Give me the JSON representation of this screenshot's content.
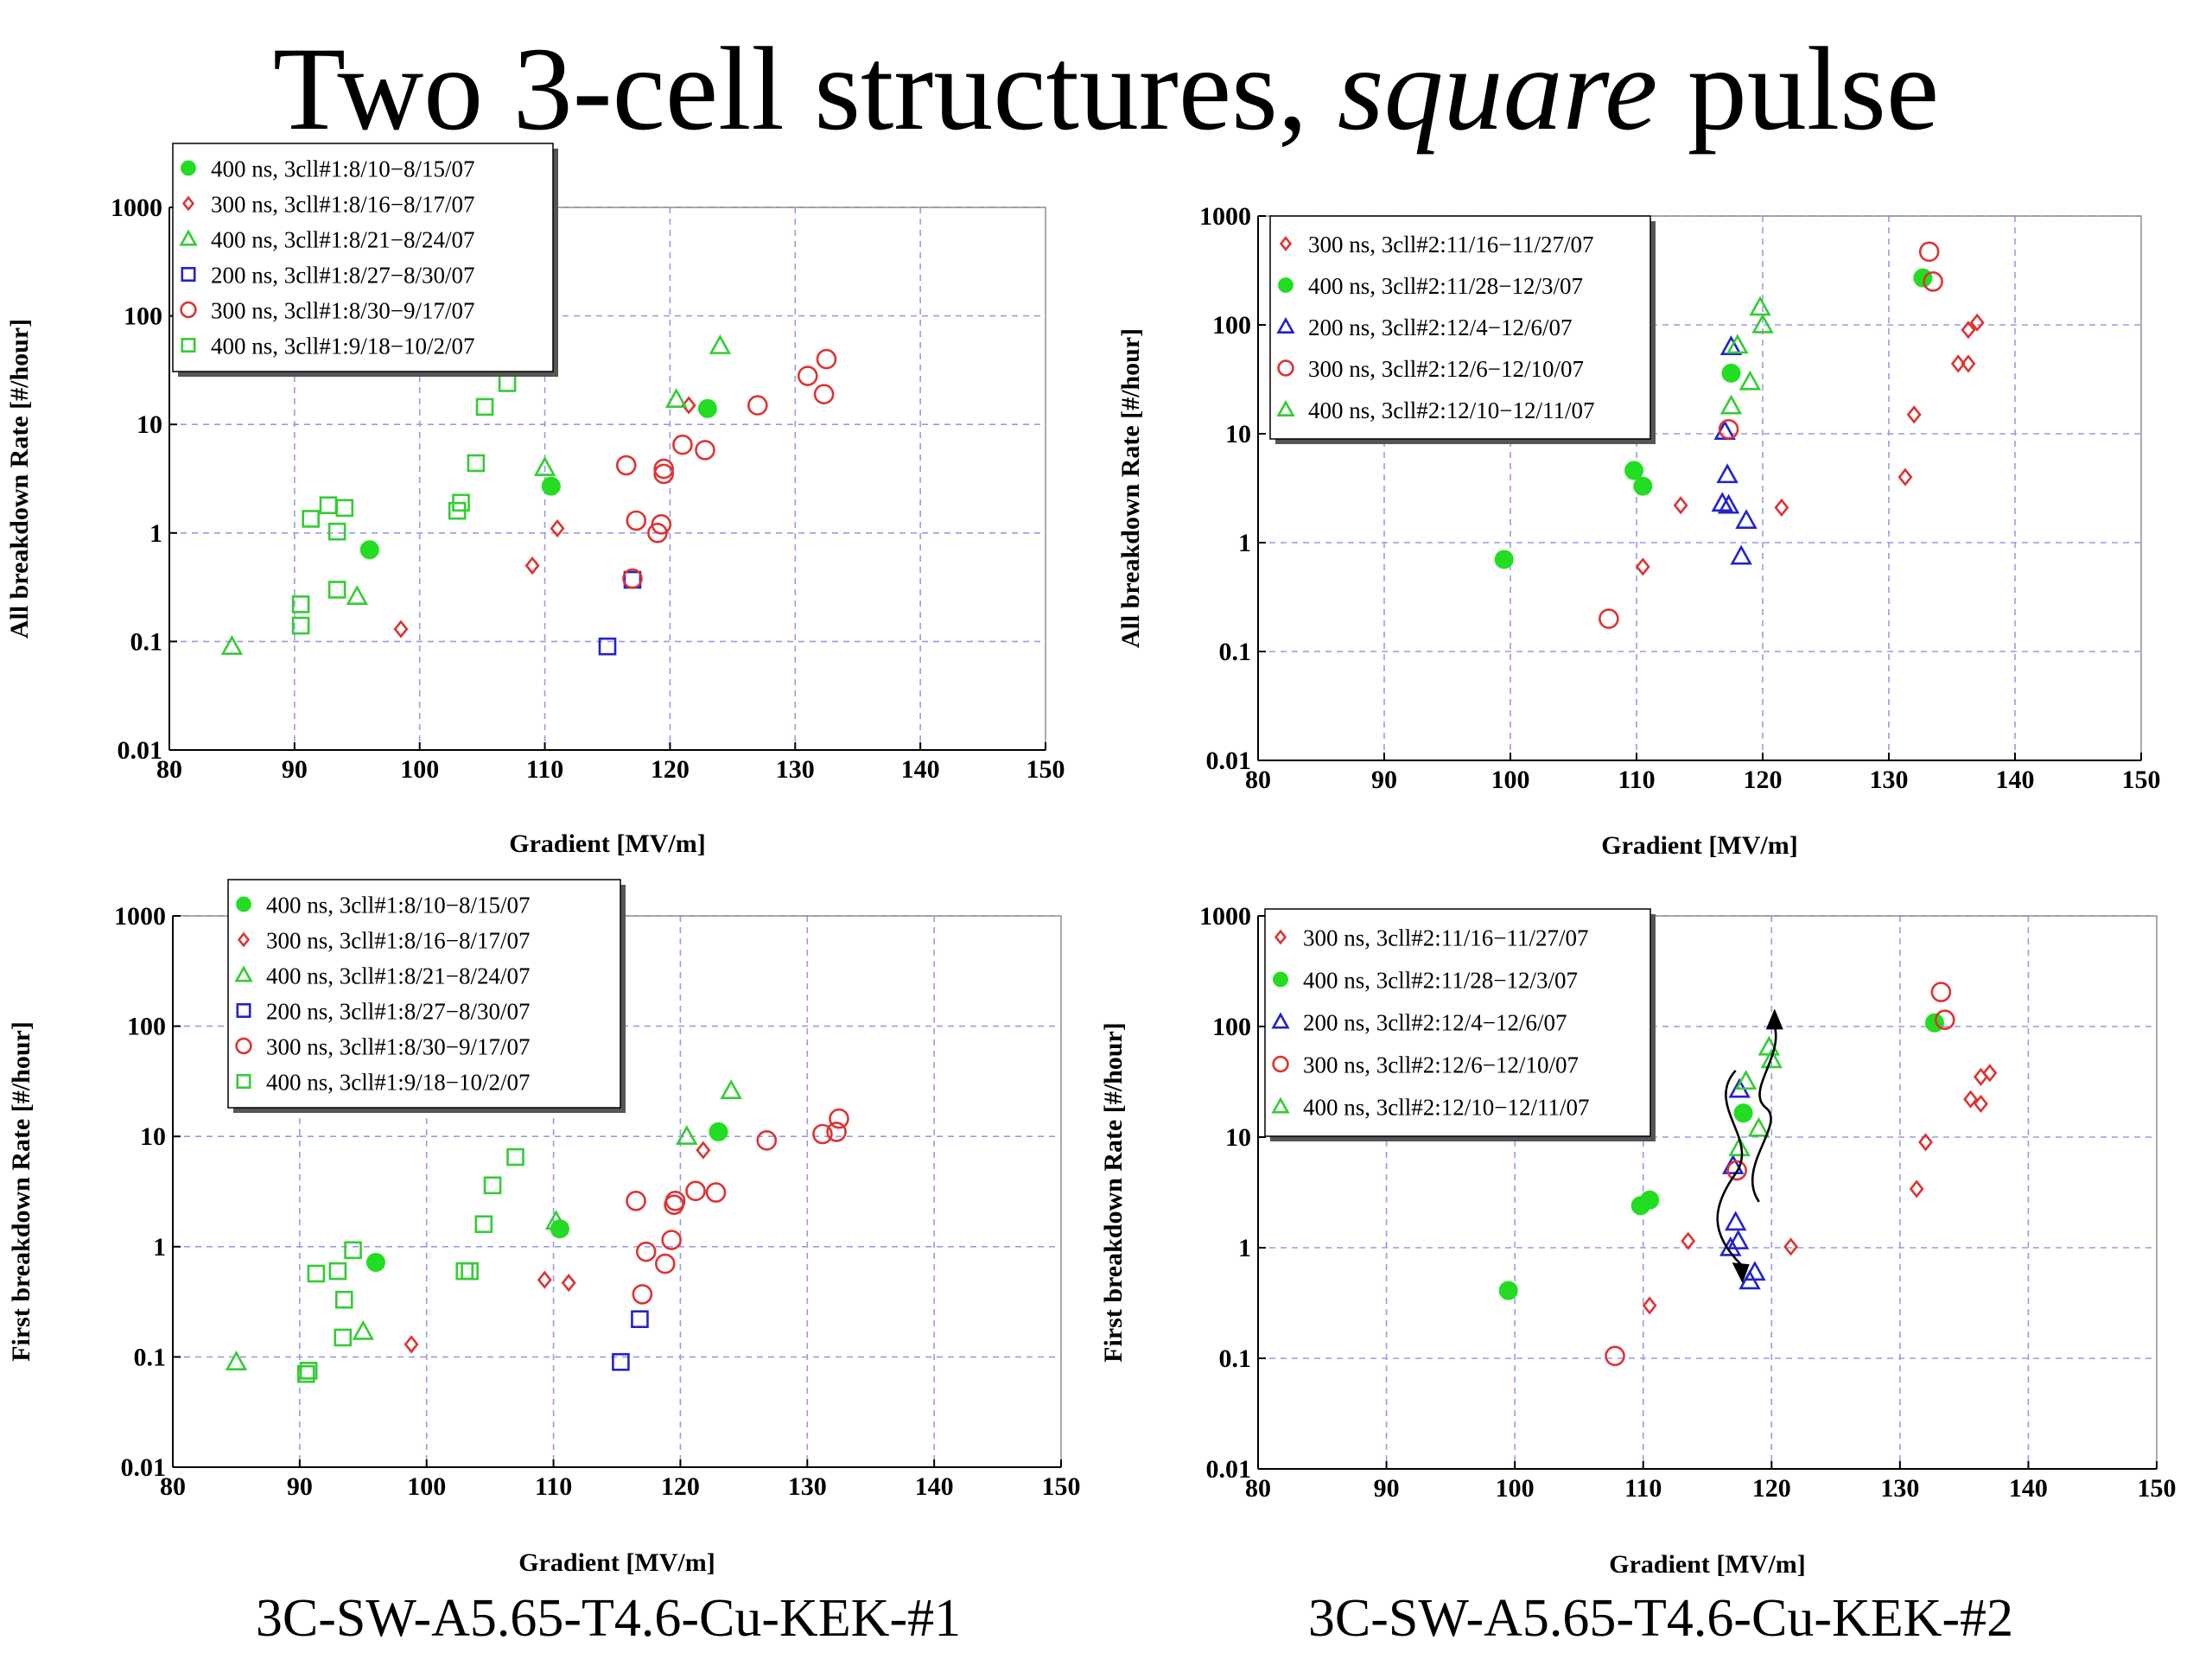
{
  "slide": {
    "title_pre": "Two 3-cell structures, ",
    "title_italic": "square",
    "title_post": " pulse",
    "captions": [
      "3C-SW-A5.65-T4.6-Cu-KEK-#1",
      "3C-SW-A5.65-T4.6-Cu-KEK-#2"
    ]
  },
  "chart_data": [
    {
      "type": "scatter",
      "xlabel": "Gradient [MV/m]",
      "ylabel": "All breakdown Rate [#/hour]",
      "xlim": [
        80,
        150
      ],
      "ylim": [
        0.01,
        1000
      ],
      "y_scale": "log",
      "x_ticks": [
        "80",
        "90",
        "100",
        "110",
        "120",
        "130",
        "140",
        "150"
      ],
      "y_ticks": [
        "0.01",
        "0.1",
        "1",
        "10",
        "100",
        "1000"
      ],
      "grid": true,
      "legend_position": "top-left",
      "series": [
        {
          "name": "400 ns, 3cll#1:8/10−8/15/07",
          "marker": "filled-circle",
          "color": "#22dd22",
          "points": [
            [
              96,
              0.7
            ],
            [
              110.5,
              2.7
            ],
            [
              123,
              14
            ]
          ]
        },
        {
          "name": "300 ns, 3cll#1:8/16−8/17/07",
          "marker": "diamond",
          "color": "#dd3333",
          "points": [
            [
              98.5,
              0.13
            ],
            [
              109,
              0.5
            ],
            [
              111,
              1.1
            ],
            [
              121.5,
              15
            ]
          ]
        },
        {
          "name": "400 ns, 3cll#1:8/21−8/24/07",
          "marker": "triangle",
          "color": "#33cc33",
          "points": [
            [
              85,
              0.09
            ],
            [
              95,
              0.26
            ],
            [
              110,
              4
            ],
            [
              120.5,
              17
            ],
            [
              124,
              53
            ]
          ]
        },
        {
          "name": "200 ns, 3cll#1:8/27−8/30/07",
          "marker": "square",
          "color": "#2222cc",
          "points": [
            [
              115,
              0.09
            ],
            [
              117,
              0.37
            ]
          ]
        },
        {
          "name": "300 ns, 3cll#1:8/30−9/17/07",
          "marker": "circle",
          "color": "#dd3333",
          "points": [
            [
              116.5,
              4.2
            ],
            [
              117,
              0.38
            ],
            [
              117.3,
              1.3
            ],
            [
              119,
              1.0
            ],
            [
              119.3,
              1.2
            ],
            [
              119.5,
              3.5
            ],
            [
              119.5,
              3.9
            ],
            [
              121,
              6.5
            ],
            [
              122.8,
              5.8
            ],
            [
              127,
              15
            ],
            [
              131,
              28
            ],
            [
              132.3,
              19
            ],
            [
              132.5,
              40
            ]
          ]
        },
        {
          "name": "400 ns, 3cll#1:9/18−10/2/07",
          "marker": "square",
          "color": "#33cc33",
          "points": [
            [
              90.5,
              0.14
            ],
            [
              90.5,
              0.22
            ],
            [
              91.3,
              1.35
            ],
            [
              92.7,
              1.8
            ],
            [
              93.4,
              1.03
            ],
            [
              93.4,
              0.3
            ],
            [
              94,
              1.7
            ],
            [
              103,
              1.6
            ],
            [
              103.3,
              1.9
            ],
            [
              104.5,
              4.4
            ],
            [
              105.2,
              14.5
            ],
            [
              107,
              24
            ]
          ]
        }
      ]
    },
    {
      "type": "scatter",
      "xlabel": "Gradient [MV/m]",
      "ylabel": "All breakdown Rate [#/hour]",
      "xlim": [
        80,
        150
      ],
      "ylim": [
        0.01,
        1000
      ],
      "y_scale": "log",
      "x_ticks": [
        "80",
        "90",
        "100",
        "110",
        "120",
        "130",
        "140",
        "150"
      ],
      "y_ticks": [
        "0.01",
        "0.1",
        "1",
        "10",
        "100",
        "1000"
      ],
      "grid": true,
      "legend_position": "top-left",
      "series": [
        {
          "name": "300 ns, 3cll#2:11/16−11/27/07",
          "marker": "diamond",
          "color": "#dd3333",
          "points": [
            [
              110.5,
              0.6
            ],
            [
              113.5,
              2.2
            ],
            [
              121.5,
              2.1
            ],
            [
              131.3,
              4
            ],
            [
              132,
              15
            ],
            [
              135.5,
              44
            ],
            [
              136.3,
              44
            ],
            [
              136.3,
              90
            ],
            [
              137,
              105
            ]
          ]
        },
        {
          "name": "400 ns, 3cll#2:11/28−12/3/07",
          "marker": "filled-circle",
          "color": "#22dd22",
          "points": [
            [
              99.5,
              0.7
            ],
            [
              109.8,
              4.6
            ],
            [
              110.5,
              3.3
            ],
            [
              117.5,
              36
            ],
            [
              132.7,
              270
            ]
          ]
        },
        {
          "name": "200 ns, 3cll#2:12/4−12/6/07",
          "marker": "triangle",
          "color": "#2222cc",
          "points": [
            [
              116.8,
              2.3
            ],
            [
              117,
              10.5
            ],
            [
              117.2,
              4.2
            ],
            [
              117.3,
              2.2
            ],
            [
              117.5,
              63
            ],
            [
              118.3,
              0.75
            ],
            [
              118.7,
              1.6
            ]
          ]
        },
        {
          "name": "300 ns, 3cll#2:12/6−12/10/07",
          "marker": "circle",
          "color": "#dd3333",
          "points": [
            [
              107.8,
              0.2
            ],
            [
              117.3,
              11
            ],
            [
              133.2,
              470
            ],
            [
              133.5,
              250
            ]
          ]
        },
        {
          "name": "400 ns, 3cll#2:12/10−12/11/07",
          "marker": "triangle",
          "color": "#33cc33",
          "points": [
            [
              117.5,
              18
            ],
            [
              118,
              65
            ],
            [
              119,
              30
            ],
            [
              119.8,
              145
            ],
            [
              120,
              100
            ]
          ]
        }
      ]
    },
    {
      "type": "scatter",
      "xlabel": "Gradient [MV/m]",
      "ylabel": "First breakdown Rate [#/hour]",
      "xlim": [
        80,
        150
      ],
      "ylim": [
        0.01,
        1000
      ],
      "y_scale": "log",
      "x_ticks": [
        "80",
        "90",
        "100",
        "110",
        "120",
        "130",
        "140",
        "150"
      ],
      "y_ticks": [
        "0.01",
        "0.1",
        "1",
        "10",
        "100",
        "1000"
      ],
      "grid": true,
      "legend_position": "top-left",
      "series": [
        {
          "name": "400 ns, 3cll#1:8/10−8/15/07",
          "marker": "filled-circle",
          "color": "#22dd22",
          "points": [
            [
              96,
              0.72
            ],
            [
              110.5,
              1.45
            ],
            [
              123,
              11
            ]
          ]
        },
        {
          "name": "300 ns, 3cll#1:8/16−8/17/07",
          "marker": "diamond",
          "color": "#dd3333",
          "points": [
            [
              98.8,
              0.13
            ],
            [
              109.3,
              0.5
            ],
            [
              111.2,
              0.47
            ],
            [
              121.8,
              7.5
            ]
          ]
        },
        {
          "name": "400 ns, 3cll#1:8/21−8/24/07",
          "marker": "triangle",
          "color": "#33cc33",
          "points": [
            [
              85,
              0.09
            ],
            [
              95,
              0.17
            ],
            [
              110.2,
              1.7
            ],
            [
              120.5,
              10
            ],
            [
              124,
              26
            ]
          ]
        },
        {
          "name": "200 ns, 3cll#1:8/27−8/30/07",
          "marker": "square",
          "color": "#2222cc",
          "points": [
            [
              115.3,
              0.09
            ],
            [
              116.8,
              0.22
            ]
          ]
        },
        {
          "name": "300 ns, 3cll#1:8/30−9/17/07",
          "marker": "circle",
          "color": "#dd3333",
          "points": [
            [
              116.5,
              2.6
            ],
            [
              117,
              0.37
            ],
            [
              117.3,
              0.9
            ],
            [
              118.8,
              0.7
            ],
            [
              119.3,
              1.15
            ],
            [
              119.5,
              2.4
            ],
            [
              119.6,
              2.6
            ],
            [
              121.2,
              3.2
            ],
            [
              122.8,
              3.1
            ],
            [
              126.8,
              9.2
            ],
            [
              131.2,
              10.5
            ],
            [
              132.3,
              11
            ],
            [
              132.5,
              14.5
            ]
          ]
        },
        {
          "name": "400 ns, 3cll#1:9/18−10/2/07",
          "marker": "square",
          "color": "#33cc33",
          "points": [
            [
              90.5,
              0.07
            ],
            [
              90.7,
              0.075
            ],
            [
              91.3,
              0.57
            ],
            [
              93,
              0.6
            ],
            [
              93.4,
              0.15
            ],
            [
              93.5,
              0.33
            ],
            [
              94.2,
              0.93
            ],
            [
              103,
              0.6
            ],
            [
              103.4,
              0.6
            ],
            [
              104.5,
              1.6
            ],
            [
              105.2,
              3.6
            ],
            [
              107,
              6.5
            ]
          ]
        }
      ]
    },
    {
      "type": "scatter",
      "xlabel": "Gradient [MV/m]",
      "ylabel": "First breakdown Rate [#/hour]",
      "xlim": [
        80,
        150
      ],
      "ylim": [
        0.01,
        1000
      ],
      "y_scale": "log",
      "x_ticks": [
        "80",
        "90",
        "100",
        "110",
        "120",
        "130",
        "140",
        "150"
      ],
      "y_ticks": [
        "0.01",
        "0.1",
        "1",
        "10",
        "100",
        "1000"
      ],
      "grid": true,
      "legend_position": "top-left",
      "annotations": [
        "wavy arrow pointing down",
        "wavy arrow pointing up"
      ],
      "series": [
        {
          "name": "300 ns, 3cll#2:11/16−11/27/07",
          "marker": "diamond",
          "color": "#dd3333",
          "points": [
            [
              110.5,
              0.3
            ],
            [
              113.5,
              1.15
            ],
            [
              121.5,
              1.02
            ],
            [
              131.3,
              3.4
            ],
            [
              132,
              9
            ],
            [
              135.5,
              22
            ],
            [
              136.3,
              20
            ],
            [
              136.3,
              35
            ],
            [
              137,
              38
            ]
          ]
        },
        {
          "name": "400 ns, 3cll#2:11/28−12/3/07",
          "marker": "filled-circle",
          "color": "#22dd22",
          "points": [
            [
              99.5,
              0.41
            ],
            [
              109.8,
              2.4
            ],
            [
              110.5,
              2.7
            ],
            [
              117.8,
              16.5
            ],
            [
              132.7,
              108
            ]
          ]
        },
        {
          "name": "200 ns, 3cll#2:12/4−12/6/07",
          "marker": "triangle",
          "color": "#2222cc",
          "points": [
            [
              116.8,
              1.0
            ],
            [
              117,
              5.5
            ],
            [
              117.2,
              1.7
            ],
            [
              117.4,
              1.15
            ],
            [
              117.5,
              27
            ],
            [
              118.3,
              0.5
            ],
            [
              118.7,
              0.6
            ]
          ]
        },
        {
          "name": "300 ns, 3cll#2:12/6−12/10/07",
          "marker": "circle",
          "color": "#dd3333",
          "points": [
            [
              107.8,
              0.105
            ],
            [
              117.3,
              5
            ],
            [
              133.2,
              205
            ],
            [
              133.5,
              115
            ]
          ]
        },
        {
          "name": "400 ns, 3cll#2:12/10−12/11/07",
          "marker": "triangle",
          "color": "#33cc33",
          "points": [
            [
              117.5,
              8
            ],
            [
              118,
              32
            ],
            [
              119,
              12
            ],
            [
              119.8,
              65
            ],
            [
              120,
              50
            ]
          ]
        }
      ]
    }
  ]
}
